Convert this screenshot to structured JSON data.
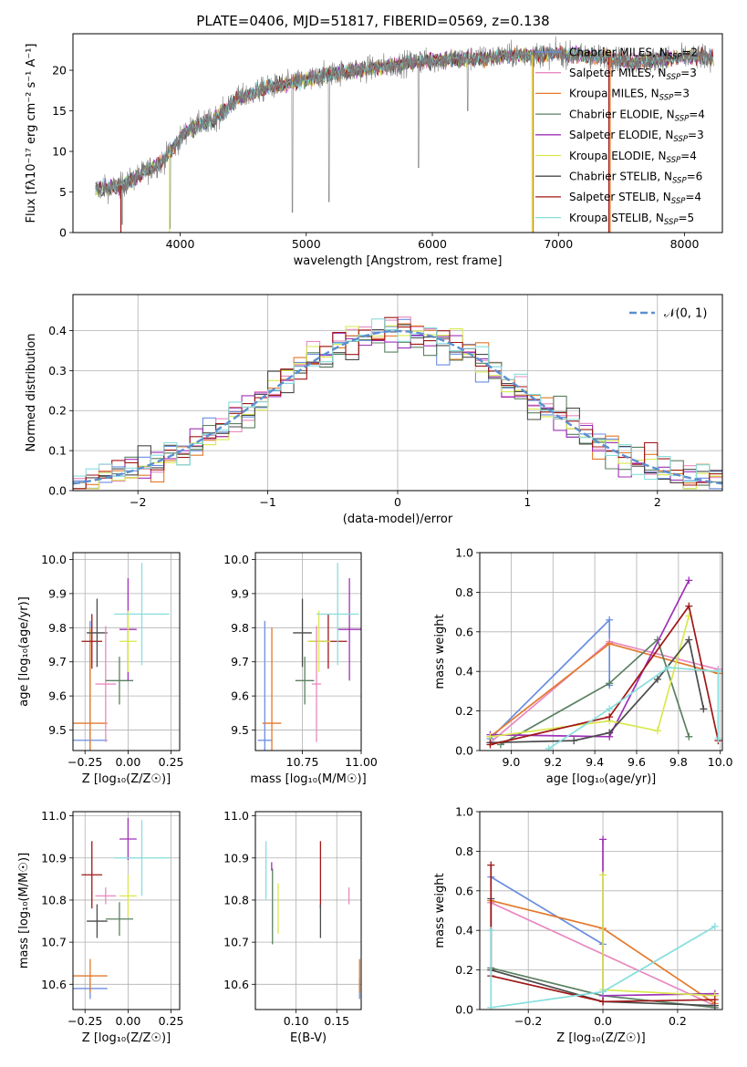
{
  "colors": {
    "chabrier_miles": "#6a8ee0",
    "salpeter_miles": "#e889c0",
    "kroupa_miles": "#e3792b",
    "chabrier_elodie": "#5a8060",
    "salpeter_elodie": "#a030b8",
    "kroupa_elodie": "#d9e84e",
    "chabrier_stelib": "#4a4a4a",
    "salpeter_stelib": "#a01616",
    "kroupa_stelib": "#88dede",
    "normal": "#5b8fd0",
    "grid": "#b0b0b0"
  },
  "chart_data": [
    {
      "id": "spectrum",
      "type": "line",
      "title": "PLATE=0406, MJD=51817, FIBERID=0569, z=0.138",
      "xlabel": "wavelength [Angstrom, rest frame]",
      "ylabel": "Flux [fλ10⁻¹⁷ erg cm⁻² s⁻¹ A⁻¹]",
      "xlim": [
        3150,
        8300
      ],
      "ylim": [
        0,
        24.5
      ],
      "xticks": [
        "4000",
        "5000",
        "6000",
        "7000",
        "8000"
      ],
      "yticks": [
        "0",
        "5",
        "10",
        "15",
        "20"
      ],
      "grid": false,
      "legend_position": "top-right",
      "legend": [
        {
          "label": "Chabrier MILES, N",
          "sub": "SSP",
          "suffix": "=2",
          "color": "chabrier_miles"
        },
        {
          "label": "Salpeter MILES, N",
          "sub": "SSP",
          "suffix": "=3",
          "color": "salpeter_miles"
        },
        {
          "label": "Kroupa MILES, N",
          "sub": "SSP",
          "suffix": "=3",
          "color": "kroupa_miles"
        },
        {
          "label": "Chabrier ELODIE, N",
          "sub": "SSP",
          "suffix": "=4",
          "color": "chabrier_elodie"
        },
        {
          "label": "Salpeter ELODIE, N",
          "sub": "SSP",
          "suffix": "=3",
          "color": "salpeter_elodie"
        },
        {
          "label": "Kroupa ELODIE, N",
          "sub": "SSP",
          "suffix": "=4",
          "color": "kroupa_elodie"
        },
        {
          "label": "Chabrier STELIB, N",
          "sub": "SSP",
          "suffix": "=6",
          "color": "chabrier_stelib"
        },
        {
          "label": "Salpeter STELIB, N",
          "sub": "SSP",
          "suffix": "=4",
          "color": "salpeter_stelib"
        },
        {
          "label": "Kroupa STELIB, N",
          "sub": "SSP",
          "suffix": "=5",
          "color": "kroupa_stelib"
        }
      ],
      "continuum": [
        [
          3330,
          5.4
        ],
        [
          3450,
          5.5
        ],
        [
          3550,
          5.9
        ],
        [
          3650,
          6.8
        ],
        [
          3750,
          7.8
        ],
        [
          3850,
          8.6
        ],
        [
          3950,
          10.5
        ],
        [
          4050,
          12.5
        ],
        [
          4150,
          13.3
        ],
        [
          4250,
          13.8
        ],
        [
          4350,
          15.0
        ],
        [
          4450,
          16.5
        ],
        [
          4550,
          17.0
        ],
        [
          4650,
          17.6
        ],
        [
          4750,
          18.0
        ],
        [
          4850,
          18.3
        ],
        [
          5000,
          18.8
        ],
        [
          5200,
          19.6
        ],
        [
          5400,
          20.0
        ],
        [
          5600,
          20.4
        ],
        [
          5800,
          20.9
        ],
        [
          6000,
          21.2
        ],
        [
          6200,
          21.4
        ],
        [
          6400,
          21.5
        ],
        [
          6600,
          21.8
        ],
        [
          6800,
          21.9
        ],
        [
          7000,
          22.0
        ],
        [
          7200,
          21.8
        ],
        [
          7400,
          21.6
        ],
        [
          7600,
          21.0
        ],
        [
          7800,
          21.4
        ],
        [
          8000,
          21.6
        ],
        [
          8200,
          21.6
        ]
      ],
      "observed_dips": [
        [
          3540,
          1.0
        ],
        [
          3920,
          0.5
        ],
        [
          4890,
          2.5
        ],
        [
          5180,
          3.8
        ],
        [
          5890,
          8.0
        ],
        [
          6280,
          15.0
        ]
      ],
      "model_dropouts": [
        {
          "x": 3530,
          "color": "salpeter_stelib"
        },
        {
          "x": 3915,
          "color": "kroupa_elodie"
        },
        {
          "x": 6790,
          "color": "kroupa_elodie"
        },
        {
          "x": 6800,
          "color": "kroupa_miles"
        },
        {
          "x": 7400,
          "color": "salpeter_stelib"
        },
        {
          "x": 7410,
          "color": "kroupa_miles"
        }
      ]
    },
    {
      "id": "residuals",
      "type": "histogram",
      "xlabel": "(data-model)/error",
      "ylabel": "Normed distribution",
      "xlim": [
        -2.5,
        2.5
      ],
      "ylim": [
        0,
        0.49
      ],
      "xticks": [
        "−2",
        "−1",
        "0",
        "1",
        "2"
      ],
      "yticks": [
        "0.0",
        "0.1",
        "0.2",
        "0.3",
        "0.4"
      ],
      "grid": true,
      "bin_width": 0.1,
      "legend_position": "top-right",
      "legend": [
        {
          "label": "𝒩(0, 1)",
          "color": "normal",
          "style": "dashed"
        }
      ]
    },
    {
      "id": "age-vs-Z",
      "type": "errorbar",
      "xlabel": "Z [log₁₀(Z/Z☉)]",
      "ylabel": "age  [log₁₀(age/yr)]",
      "xlim": [
        -0.32,
        0.3
      ],
      "ylim": [
        9.44,
        10.02
      ],
      "xticks": [
        "−0.25",
        "0.00",
        "0.25"
      ],
      "yticks": [
        "9.5",
        "9.6",
        "9.7",
        "9.8",
        "9.9",
        "10.0"
      ],
      "grid": true,
      "points": [
        {
          "color": "chabrier_miles",
          "x": -0.22,
          "xerr": 0.1,
          "y": 9.47,
          "yerr": 0.35
        },
        {
          "color": "kroupa_miles",
          "x": -0.22,
          "xerr": 0.1,
          "y": 9.52,
          "yerr": 0.28
        },
        {
          "color": "salpeter_stelib",
          "x": -0.21,
          "xerr": 0.06,
          "y": 9.76,
          "yerr": 0.08
        },
        {
          "color": "chabrier_stelib",
          "x": -0.18,
          "xerr": 0.06,
          "y": 9.785,
          "yerr": 0.1
        },
        {
          "color": "salpeter_miles",
          "x": -0.13,
          "xerr": 0.06,
          "y": 9.635,
          "yerr": 0.17
        },
        {
          "color": "chabrier_elodie",
          "x": -0.05,
          "xerr": 0.08,
          "y": 9.645,
          "yerr": 0.07
        },
        {
          "color": "salpeter_elodie",
          "x": 0.0,
          "xerr": 0.05,
          "y": 9.795,
          "yerr": 0.15
        },
        {
          "color": "kroupa_elodie",
          "x": 0.0,
          "xerr": 0.05,
          "y": 9.76,
          "yerr": 0.09
        },
        {
          "color": "kroupa_stelib",
          "x": 0.08,
          "xerr": 0.16,
          "y": 9.84,
          "yerr": 0.15
        }
      ]
    },
    {
      "id": "age-vs-mass",
      "type": "errorbar",
      "xlabel": "mass [log₁₀(M/M☉)]",
      "ylabel": "",
      "xlim": [
        10.55,
        11.0
      ],
      "ylim": [
        9.44,
        10.02
      ],
      "xticks": [
        "10.75",
        "11.00"
      ],
      "yticks": [
        "9.5",
        "9.6",
        "9.7",
        "9.8",
        "9.9",
        "10.0"
      ],
      "grid": true,
      "points": [
        {
          "color": "chabrier_miles",
          "x": 10.59,
          "xerr": 0.03,
          "y": 9.47,
          "yerr": 0.35
        },
        {
          "color": "kroupa_miles",
          "x": 10.62,
          "xerr": 0.04,
          "y": 9.52,
          "yerr": 0.28
        },
        {
          "color": "chabrier_stelib",
          "x": 10.75,
          "xerr": 0.04,
          "y": 9.785,
          "yerr": 0.1
        },
        {
          "color": "chabrier_elodie",
          "x": 10.76,
          "xerr": 0.04,
          "y": 9.645,
          "yerr": 0.07
        },
        {
          "color": "salpeter_stelib",
          "x": 10.86,
          "xerr": 0.08,
          "y": 9.76,
          "yerr": 0.08
        },
        {
          "color": "kroupa_elodie",
          "x": 10.82,
          "xerr": 0.05,
          "y": 9.76,
          "yerr": 0.09
        },
        {
          "color": "salpeter_miles",
          "x": 10.81,
          "xerr": 0.02,
          "y": 9.635,
          "yerr": 0.17
        },
        {
          "color": "salpeter_elodie",
          "x": 10.95,
          "xerr": 0.05,
          "y": 9.795,
          "yerr": 0.15
        },
        {
          "color": "kroupa_stelib",
          "x": 10.9,
          "xerr": 0.09,
          "y": 9.84,
          "yerr": 0.15
        }
      ]
    },
    {
      "id": "weight-vs-age",
      "type": "line",
      "xlabel": "age  [log₁₀(age/yr)]",
      "ylabel": "mass weight",
      "xlim": [
        8.85,
        10.01
      ],
      "ylim": [
        0,
        1
      ],
      "xticks": [
        "9.0",
        "9.2",
        "9.4",
        "9.6",
        "9.8",
        "10.0"
      ],
      "yticks": [
        "0.0",
        "0.2",
        "0.4",
        "0.6",
        "0.8",
        "1.0"
      ],
      "grid": true,
      "series": [
        {
          "color": "chabrier_miles",
          "x": [
            8.9,
            9.47,
            9.47
          ],
          "y": [
            0.06,
            0.66,
            0.33
          ]
        },
        {
          "color": "salpeter_miles",
          "x": [
            8.9,
            9.47,
            9.99
          ],
          "y": [
            0.04,
            0.55,
            0.41
          ]
        },
        {
          "color": "kroupa_miles",
          "x": [
            8.9,
            9.47,
            9.99
          ],
          "y": [
            0.07,
            0.54,
            0.39
          ]
        },
        {
          "color": "chabrier_elodie",
          "x": [
            8.95,
            9.47,
            9.7,
            9.85
          ],
          "y": [
            0.03,
            0.34,
            0.56,
            0.07
          ]
        },
        {
          "color": "salpeter_elodie",
          "x": [
            8.9,
            9.47,
            9.85
          ],
          "y": [
            0.08,
            0.07,
            0.86
          ]
        },
        {
          "color": "kroupa_elodie",
          "x": [
            8.9,
            9.47,
            9.7,
            9.85
          ],
          "y": [
            0.07,
            0.15,
            0.1,
            0.68
          ]
        },
        {
          "color": "chabrier_stelib",
          "x": [
            8.9,
            9.3,
            9.47,
            9.7,
            9.85,
            9.92
          ],
          "y": [
            0.04,
            0.05,
            0.09,
            0.36,
            0.56,
            0.21
          ]
        },
        {
          "color": "salpeter_stelib",
          "x": [
            8.9,
            9.47,
            9.85,
            9.99
          ],
          "y": [
            0.03,
            0.17,
            0.73,
            0.05
          ]
        },
        {
          "color": "kroupa_stelib",
          "x": [
            9.18,
            9.47,
            9.75,
            9.99,
            9.99
          ],
          "y": [
            0.01,
            0.21,
            0.42,
            0.4,
            0.06
          ]
        }
      ]
    },
    {
      "id": "mass-vs-Z",
      "type": "errorbar",
      "xlabel": "Z [log₁₀(Z/Z☉)]",
      "ylabel": "mass [log₁₀(M/M☉)]",
      "xlim": [
        -0.32,
        0.3
      ],
      "ylim": [
        10.54,
        11.01
      ],
      "xticks": [
        "−0.25",
        "0.00",
        "0.25"
      ],
      "yticks": [
        "10.6",
        "10.7",
        "10.8",
        "10.9",
        "11.0"
      ],
      "grid": true,
      "points": [
        {
          "color": "chabrier_miles",
          "x": -0.22,
          "xerr": 0.1,
          "y": 10.59,
          "yerr": 0.025
        },
        {
          "color": "kroupa_miles",
          "x": -0.22,
          "xerr": 0.1,
          "y": 10.62,
          "yerr": 0.04
        },
        {
          "color": "salpeter_stelib",
          "x": -0.21,
          "xerr": 0.06,
          "y": 10.86,
          "yerr": 0.08
        },
        {
          "color": "chabrier_stelib",
          "x": -0.18,
          "xerr": 0.06,
          "y": 10.75,
          "yerr": 0.04
        },
        {
          "color": "salpeter_miles",
          "x": -0.13,
          "xerr": 0.06,
          "y": 10.81,
          "yerr": 0.02
        },
        {
          "color": "chabrier_elodie",
          "x": -0.05,
          "xerr": 0.08,
          "y": 10.755,
          "yerr": 0.04
        },
        {
          "color": "salpeter_elodie",
          "x": 0.0,
          "xerr": 0.05,
          "y": 10.945,
          "yerr": 0.05
        },
        {
          "color": "kroupa_elodie",
          "x": 0.0,
          "xerr": 0.05,
          "y": 10.81,
          "yerr": 0.05
        },
        {
          "color": "kroupa_stelib",
          "x": 0.08,
          "xerr": 0.16,
          "y": 10.9,
          "yerr": 0.09
        }
      ]
    },
    {
      "id": "mass-vs-EBV",
      "type": "errorbar",
      "xlabel": "E(B-V)",
      "ylabel": "",
      "xlim": [
        0.05,
        0.18
      ],
      "ylim": [
        10.54,
        11.01
      ],
      "xticks": [
        "0.10",
        "0.15"
      ],
      "yticks": [
        "10.6",
        "10.7",
        "10.8",
        "10.9",
        "11.0"
      ],
      "grid": true,
      "points": [
        {
          "color": "chabrier_miles",
          "x": 0.178,
          "xerr": 0,
          "y": 10.59,
          "yerr": 0.025
        },
        {
          "color": "kroupa_miles",
          "x": 0.178,
          "xerr": 0,
          "y": 10.62,
          "yerr": 0.04
        },
        {
          "color": "salpeter_stelib",
          "x": 0.13,
          "xerr": 0,
          "y": 10.86,
          "yerr": 0.08
        },
        {
          "color": "chabrier_stelib",
          "x": 0.13,
          "xerr": 0,
          "y": 10.75,
          "yerr": 0.04
        },
        {
          "color": "salpeter_miles",
          "x": 0.165,
          "xerr": 0,
          "y": 10.81,
          "yerr": 0.02
        },
        {
          "color": "chabrier_elodie",
          "x": 0.071,
          "xerr": 0,
          "y": 10.785,
          "yerr": 0.09
        },
        {
          "color": "salpeter_elodie",
          "x": 0.07,
          "xerr": 0,
          "y": 10.88,
          "yerr": 0.01
        },
        {
          "color": "kroupa_elodie",
          "x": 0.078,
          "xerr": 0,
          "y": 10.78,
          "yerr": 0.06
        },
        {
          "color": "kroupa_stelib",
          "x": 0.063,
          "xerr": 0,
          "y": 10.87,
          "yerr": 0.07
        }
      ]
    },
    {
      "id": "weight-vs-Z",
      "type": "line",
      "xlabel": "Z [log₁₀(Z/Z☉)]",
      "ylabel": "mass weight",
      "xlim": [
        -0.33,
        0.32
      ],
      "ylim": [
        0,
        1
      ],
      "xticks": [
        "−0.2",
        "0.0",
        "0.2"
      ],
      "yticks": [
        "0.0",
        "0.2",
        "0.4",
        "0.6",
        "0.8",
        "1.0"
      ],
      "grid": true,
      "series": [
        {
          "color": "chabrier_miles",
          "x": [
            -0.3,
            0.0
          ],
          "y": [
            0.67,
            0.33
          ]
        },
        {
          "color": "salpeter_miles",
          "x": [
            -0.3,
            0.3
          ],
          "y": [
            0.54,
            0.02
          ]
        },
        {
          "color": "kroupa_miles",
          "x": [
            -0.3,
            0.0,
            0.3
          ],
          "y": [
            0.55,
            0.41,
            0.03
          ]
        },
        {
          "color": "chabrier_elodie",
          "x": [
            -0.3,
            0.0,
            0.3
          ],
          "y": [
            0.21,
            0.07,
            0.01
          ]
        },
        {
          "color": "salpeter_elodie",
          "x": [
            0.0,
            0.0,
            0.3
          ],
          "y": [
            0.86,
            0.07,
            0.08
          ]
        },
        {
          "color": "kroupa_elodie",
          "x": [
            0.0,
            0.0,
            0.3
          ],
          "y": [
            0.68,
            0.1,
            0.07
          ]
        },
        {
          "color": "chabrier_stelib",
          "x": [
            -0.3,
            -0.3,
            0.0,
            0.3
          ],
          "y": [
            0.56,
            0.2,
            0.04,
            0.02
          ]
        },
        {
          "color": "salpeter_stelib",
          "x": [
            -0.3,
            -0.3,
            0.0,
            0.3
          ],
          "y": [
            0.73,
            0.17,
            0.04,
            0.05
          ]
        },
        {
          "color": "kroupa_stelib",
          "x": [
            -0.3,
            -0.3,
            0.0,
            0.3
          ],
          "y": [
            0.4,
            0.01,
            0.09,
            0.42
          ]
        }
      ]
    }
  ]
}
